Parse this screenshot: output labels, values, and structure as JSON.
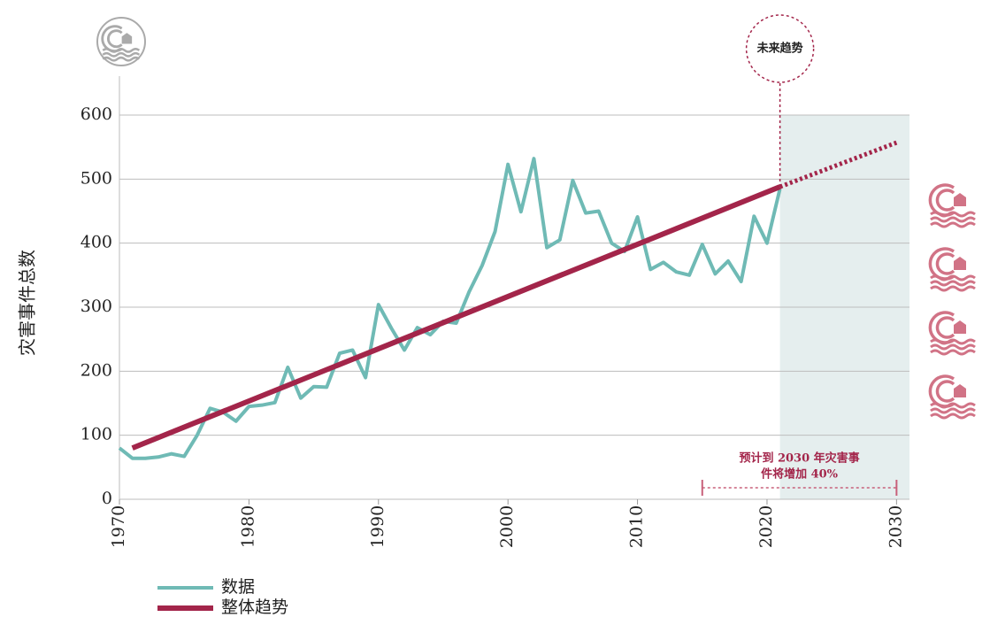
{
  "chart_data": {
    "type": "line",
    "y_label": "灾害事件总数",
    "xlim": [
      1970,
      2031
    ],
    "xticks": [
      1970,
      1980,
      1990,
      2000,
      2010,
      2020,
      2030
    ],
    "ylim": [
      0,
      600
    ],
    "yticks": [
      0,
      100,
      200,
      300,
      400,
      500,
      600
    ],
    "grid": true,
    "series": [
      {
        "name": "数据",
        "color": "#6fbab5",
        "x": [
          1970,
          1971,
          1972,
          1973,
          1974,
          1975,
          1976,
          1977,
          1978,
          1979,
          1980,
          1981,
          1982,
          1983,
          1984,
          1985,
          1986,
          1987,
          1988,
          1989,
          1990,
          1991,
          1992,
          1993,
          1994,
          1995,
          1996,
          1997,
          1998,
          1999,
          2000,
          2001,
          2002,
          2003,
          2004,
          2005,
          2006,
          2007,
          2008,
          2009,
          2010,
          2011,
          2012,
          2013,
          2014,
          2015,
          2016,
          2017,
          2018,
          2019,
          2020,
          2021
        ],
        "values": [
          80,
          64,
          64,
          66,
          71,
          67,
          100,
          142,
          136,
          122,
          145,
          147,
          151,
          206,
          158,
          176,
          175,
          228,
          233,
          190,
          304,
          267,
          233,
          268,
          257,
          278,
          275,
          324,
          365,
          418,
          523,
          449,
          532,
          393,
          405,
          498,
          447,
          450,
          400,
          387,
          441,
          359,
          370,
          355,
          350,
          398,
          352,
          372,
          340,
          442,
          400,
          485
        ]
      },
      {
        "name": "整体趋势",
        "color": "#a3254a",
        "x": [
          1971,
          2021
        ],
        "values": [
          80,
          488
        ]
      }
    ],
    "projection": {
      "color": "#a3254a",
      "x": [
        2021,
        2030
      ],
      "values": [
        488,
        557
      ]
    },
    "forecast_start": 2021,
    "forecast_color": "#e5eeee",
    "future_label": "未来趋势",
    "forecast_note": [
      "预计到 2030 年灾害事",
      "件将增加 40%"
    ],
    "note_range": [
      2015,
      2030
    ]
  }
}
